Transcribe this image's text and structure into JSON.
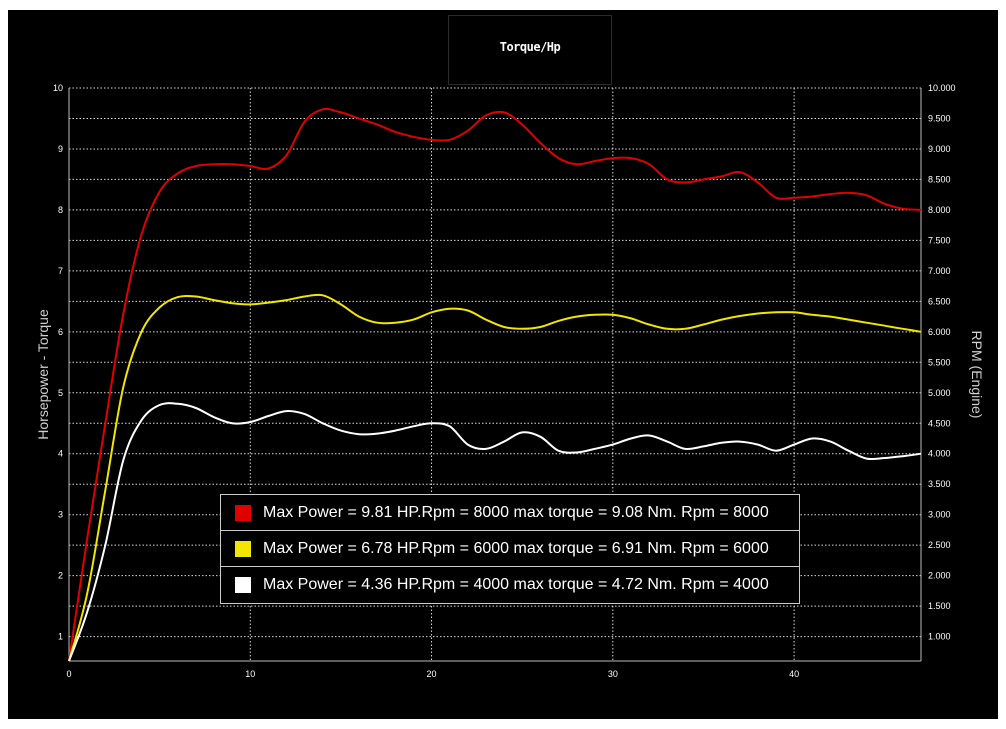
{
  "colors": {
    "background": "#000000",
    "grid": "#ffffff",
    "axis_text": "#ffffff",
    "axis_title": "#cfcfcf"
  },
  "legend": {
    "items": [
      {
        "text": "Max Power = 9.81 HP.Rpm = 8000 max torque = 9.08 Nm. Rpm = 8000",
        "color": "#e00000"
      },
      {
        "text": "Max Power = 6.78 HP.Rpm = 6000 max torque = 6.91 Nm. Rpm = 6000",
        "color": "#f2e600"
      },
      {
        "text": "Max Power = 4.36 HP.Rpm = 4000 max torque = 4.72 Nm. Rpm = 4000",
        "color": "#ffffff"
      }
    ]
  },
  "chart_data": {
    "type": "line",
    "title": "Torque/Hp",
    "ylabel": "Horsepower - Torque",
    "y2label": "RPM (Engine)",
    "xlabel": "",
    "xlim": [
      0,
      47
    ],
    "ylim": [
      0.6,
      10
    ],
    "y2lim": [
      600,
      10000
    ],
    "x_ticks": [
      "0",
      "10",
      "20",
      "30",
      "40"
    ],
    "x_tick_values": [
      0,
      10,
      20,
      30,
      40
    ],
    "y_ticks": [
      "1",
      "2",
      "3",
      "4",
      "5",
      "6",
      "7",
      "8",
      "9",
      "10"
    ],
    "y_tick_values": [
      1,
      2,
      3,
      4,
      5,
      6,
      7,
      8,
      9,
      10
    ],
    "y2_ticks": [
      "1.000",
      "1.500",
      "2.000",
      "2.500",
      "3.000",
      "3.500",
      "4.000",
      "4.500",
      "5.000",
      "5.500",
      "6.000",
      "6.500",
      "7.000",
      "7.500",
      "8.000",
      "8.500",
      "9.000",
      "9.500",
      "10.000"
    ],
    "y2_tick_values": [
      1000,
      1500,
      2000,
      2500,
      3000,
      3500,
      4000,
      4500,
      5000,
      5500,
      6000,
      6500,
      7000,
      7500,
      8000,
      8500,
      9000,
      9500,
      10000
    ],
    "grid": true,
    "legend_position": "bottom-center",
    "series": [
      {
        "color": "#e00000",
        "x": [
          0,
          1,
          2,
          3,
          4,
          5,
          6,
          7,
          8,
          9,
          10,
          11,
          12,
          13,
          14,
          15,
          16,
          17,
          18,
          19,
          20,
          21,
          22,
          23,
          24,
          25,
          26,
          27,
          28,
          29,
          30,
          31,
          32,
          33,
          34,
          35,
          36,
          37,
          38,
          39,
          40,
          41,
          42,
          43,
          44,
          45,
          46,
          47
        ],
        "y": [
          0.6,
          2.6,
          4.5,
          6.3,
          7.6,
          8.3,
          8.6,
          8.72,
          8.75,
          8.75,
          8.72,
          8.68,
          8.9,
          9.45,
          9.65,
          9.6,
          9.5,
          9.4,
          9.28,
          9.2,
          9.15,
          9.15,
          9.3,
          9.55,
          9.6,
          9.4,
          9.1,
          8.85,
          8.75,
          8.8,
          8.85,
          8.85,
          8.75,
          8.5,
          8.45,
          8.5,
          8.55,
          8.62,
          8.45,
          8.2,
          8.2,
          8.22,
          8.26,
          8.28,
          8.24,
          8.1,
          8.02,
          8.0
        ]
      },
      {
        "color": "#f2e600",
        "x": [
          0,
          1,
          2,
          3,
          4,
          5,
          6,
          7,
          8,
          9,
          10,
          11,
          12,
          13,
          14,
          15,
          16,
          17,
          18,
          19,
          20,
          21,
          22,
          23,
          24,
          25,
          26,
          27,
          28,
          29,
          30,
          31,
          32,
          33,
          34,
          35,
          36,
          37,
          38,
          39,
          40,
          41,
          42,
          43,
          44,
          45,
          46,
          47
        ],
        "y": [
          0.6,
          1.7,
          3.4,
          5.1,
          6.0,
          6.4,
          6.57,
          6.58,
          6.52,
          6.47,
          6.45,
          6.48,
          6.52,
          6.58,
          6.6,
          6.45,
          6.25,
          6.15,
          6.15,
          6.2,
          6.32,
          6.38,
          6.35,
          6.2,
          6.08,
          6.05,
          6.08,
          6.18,
          6.25,
          6.28,
          6.28,
          6.22,
          6.12,
          6.05,
          6.05,
          6.12,
          6.2,
          6.26,
          6.3,
          6.32,
          6.32,
          6.28,
          6.25,
          6.2,
          6.15,
          6.1,
          6.05,
          6.0
        ]
      },
      {
        "color": "#ffffff",
        "x": [
          0,
          1,
          2,
          3,
          4,
          5,
          6,
          7,
          8,
          9,
          10,
          11,
          12,
          13,
          14,
          15,
          16,
          17,
          18,
          19,
          20,
          21,
          22,
          23,
          24,
          25,
          26,
          27,
          28,
          29,
          30,
          31,
          32,
          33,
          34,
          35,
          36,
          37,
          38,
          39,
          40,
          41,
          42,
          43,
          44,
          45,
          46,
          47
        ],
        "y": [
          0.6,
          1.4,
          2.5,
          3.9,
          4.55,
          4.8,
          4.82,
          4.75,
          4.6,
          4.5,
          4.52,
          4.62,
          4.7,
          4.65,
          4.5,
          4.38,
          4.32,
          4.33,
          4.38,
          4.45,
          4.5,
          4.45,
          4.15,
          4.08,
          4.2,
          4.35,
          4.28,
          4.05,
          4.02,
          4.08,
          4.15,
          4.25,
          4.3,
          4.2,
          4.08,
          4.12,
          4.18,
          4.2,
          4.15,
          4.05,
          4.15,
          4.25,
          4.2,
          4.05,
          3.92,
          3.93,
          3.96,
          4.0
        ]
      }
    ]
  }
}
